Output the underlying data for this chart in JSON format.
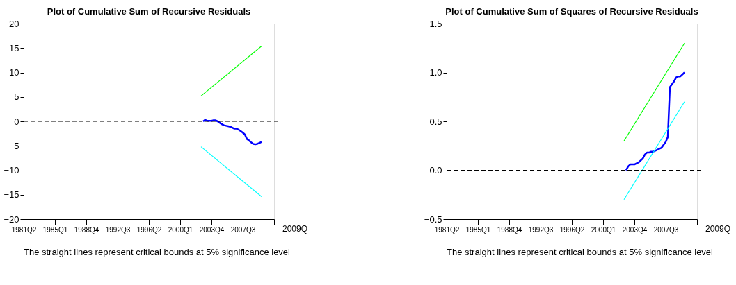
{
  "chart_data": [
    {
      "type": "line",
      "title": "Plot of Cumulative Sum of Recursive Residuals",
      "categories": [
        "1981Q2",
        null,
        null,
        null,
        null,
        null,
        null,
        null,
        null,
        null,
        null,
        null,
        null,
        null,
        null,
        "1985Q1",
        null,
        null,
        null,
        null,
        null,
        null,
        null,
        null,
        null,
        null,
        null,
        null,
        null,
        null,
        "1988Q4",
        null,
        null,
        null,
        null,
        null,
        null,
        null,
        null,
        null,
        null,
        null,
        null,
        null,
        null,
        "1992Q3",
        null,
        null,
        null,
        null,
        null,
        null,
        null,
        null,
        null,
        null,
        null,
        null,
        null,
        null,
        "1996Q2",
        null,
        null,
        null,
        null,
        null,
        null,
        null,
        null,
        null,
        null,
        null,
        null,
        null,
        null,
        "2000Q1",
        null,
        null,
        null,
        null,
        null,
        null,
        null,
        null,
        null,
        null,
        null,
        null,
        null,
        null,
        "2003Q4",
        null,
        null,
        null,
        null,
        null,
        null,
        null,
        null,
        null,
        null,
        null,
        null,
        null,
        null,
        "2007Q3",
        null,
        null,
        null,
        null,
        null,
        null,
        null,
        null,
        null,
        null,
        null,
        null,
        null,
        null,
        null
      ],
      "series": [
        {
          "color": "#0000ff",
          "values": [
            null,
            null,
            null,
            null,
            null,
            null,
            null,
            null,
            null,
            null,
            null,
            null,
            null,
            null,
            null,
            null,
            null,
            null,
            null,
            null,
            null,
            null,
            null,
            null,
            null,
            null,
            null,
            null,
            null,
            null,
            null,
            null,
            null,
            null,
            null,
            null,
            null,
            null,
            null,
            null,
            null,
            null,
            null,
            null,
            null,
            null,
            null,
            null,
            null,
            null,
            null,
            null,
            null,
            null,
            null,
            null,
            null,
            null,
            null,
            null,
            null,
            null,
            null,
            null,
            null,
            null,
            null,
            null,
            null,
            null,
            null,
            null,
            null,
            null,
            null,
            null,
            null,
            null,
            null,
            null,
            null,
            null,
            null,
            null,
            null,
            null,
            0.0,
            0.3,
            0.1,
            0.1,
            0.1,
            0.2,
            0.2,
            0.0,
            -0.3,
            -0.6,
            -0.8,
            -0.9,
            -1.0,
            -1.1,
            -1.3,
            -1.5,
            -1.5,
            -1.7,
            -2.0,
            -2.3,
            -2.7,
            -3.6,
            -3.9,
            -4.3,
            -4.6,
            -4.7,
            -4.6,
            -4.4,
            -4.2,
            null,
            null,
            null,
            null,
            null,
            null
          ]
        },
        {
          "color": "#00ff00",
          "values": [
            null,
            null,
            null,
            null,
            null,
            null,
            null,
            null,
            null,
            null,
            null,
            null,
            null,
            null,
            null,
            null,
            null,
            null,
            null,
            null,
            null,
            null,
            null,
            null,
            null,
            null,
            null,
            null,
            null,
            null,
            null,
            null,
            null,
            null,
            null,
            null,
            null,
            null,
            null,
            null,
            null,
            null,
            null,
            null,
            null,
            null,
            null,
            null,
            null,
            null,
            null,
            null,
            null,
            null,
            null,
            null,
            null,
            null,
            null,
            null,
            null,
            null,
            null,
            null,
            null,
            null,
            null,
            null,
            null,
            null,
            null,
            null,
            null,
            null,
            null,
            null,
            null,
            null,
            null,
            null,
            null,
            null,
            null,
            null,
            null,
            5.2,
            null,
            null,
            null,
            null,
            null,
            null,
            null,
            null,
            null,
            null,
            null,
            null,
            null,
            null,
            null,
            null,
            null,
            null,
            null,
            null,
            null,
            null,
            null,
            null,
            null,
            null,
            null,
            null,
            15.4,
            null,
            null,
            null,
            null,
            null,
            null
          ]
        },
        {
          "color": "#00ffff",
          "values": [
            null,
            null,
            null,
            null,
            null,
            null,
            null,
            null,
            null,
            null,
            null,
            null,
            null,
            null,
            null,
            null,
            null,
            null,
            null,
            null,
            null,
            null,
            null,
            null,
            null,
            null,
            null,
            null,
            null,
            null,
            null,
            null,
            null,
            null,
            null,
            null,
            null,
            null,
            null,
            null,
            null,
            null,
            null,
            null,
            null,
            null,
            null,
            null,
            null,
            null,
            null,
            null,
            null,
            null,
            null,
            null,
            null,
            null,
            null,
            null,
            null,
            null,
            null,
            null,
            null,
            null,
            null,
            null,
            null,
            null,
            null,
            null,
            null,
            null,
            null,
            null,
            null,
            null,
            null,
            null,
            null,
            null,
            null,
            null,
            null,
            -5.2,
            null,
            null,
            null,
            null,
            null,
            null,
            null,
            null,
            null,
            null,
            null,
            null,
            null,
            null,
            null,
            null,
            null,
            null,
            null,
            null,
            null,
            null,
            null,
            null,
            null,
            null,
            null,
            null,
            -15.4,
            null,
            null,
            null,
            null,
            null,
            null
          ]
        }
      ],
      "ylim": [
        -20,
        20
      ],
      "yticks": [
        -20,
        -15,
        -10,
        -5,
        0,
        5,
        10,
        15,
        20
      ],
      "ref_lines": [
        {
          "axis": "y",
          "value": 0,
          "color": "#000000",
          "line_style": "dashed"
        }
      ],
      "annotations": [
        "2009Q",
        "The straight lines represent critical bounds at 5% significance level"
      ],
      "grid": false
    },
    {
      "type": "line",
      "title": "Plot of Cumulative Sum of Squares of Recursive Residuals",
      "categories": [
        "1981Q2",
        null,
        null,
        null,
        null,
        null,
        null,
        null,
        null,
        null,
        null,
        null,
        null,
        null,
        null,
        "1985Q1",
        null,
        null,
        null,
        null,
        null,
        null,
        null,
        null,
        null,
        null,
        null,
        null,
        null,
        null,
        "1988Q4",
        null,
        null,
        null,
        null,
        null,
        null,
        null,
        null,
        null,
        null,
        null,
        null,
        null,
        null,
        "1992Q3",
        null,
        null,
        null,
        null,
        null,
        null,
        null,
        null,
        null,
        null,
        null,
        null,
        null,
        null,
        "1996Q2",
        null,
        null,
        null,
        null,
        null,
        null,
        null,
        null,
        null,
        null,
        null,
        null,
        null,
        null,
        "2000Q1",
        null,
        null,
        null,
        null,
        null,
        null,
        null,
        null,
        null,
        null,
        null,
        null,
        null,
        null,
        "2003Q4",
        null,
        null,
        null,
        null,
        null,
        null,
        null,
        null,
        null,
        null,
        null,
        null,
        null,
        null,
        "2007Q3",
        null,
        null,
        null,
        null,
        null,
        null,
        null,
        null,
        null,
        null,
        null,
        null,
        null,
        null,
        null
      ],
      "series": [
        {
          "color": "#0000ff",
          "values": [
            null,
            null,
            null,
            null,
            null,
            null,
            null,
            null,
            null,
            null,
            null,
            null,
            null,
            null,
            null,
            null,
            null,
            null,
            null,
            null,
            null,
            null,
            null,
            null,
            null,
            null,
            null,
            null,
            null,
            null,
            null,
            null,
            null,
            null,
            null,
            null,
            null,
            null,
            null,
            null,
            null,
            null,
            null,
            null,
            null,
            null,
            null,
            null,
            null,
            null,
            null,
            null,
            null,
            null,
            null,
            null,
            null,
            null,
            null,
            null,
            null,
            null,
            null,
            null,
            null,
            null,
            null,
            null,
            null,
            null,
            null,
            null,
            null,
            null,
            null,
            null,
            null,
            null,
            null,
            null,
            null,
            null,
            null,
            null,
            null,
            null,
            0.0,
            0.04,
            0.06,
            0.06,
            0.06,
            0.07,
            0.08,
            0.1,
            0.12,
            0.16,
            0.18,
            0.18,
            0.19,
            0.19,
            0.2,
            0.21,
            0.22,
            0.23,
            0.26,
            0.29,
            0.34,
            0.85,
            0.88,
            0.91,
            0.95,
            0.96,
            0.96,
            0.98,
            1.0,
            null,
            null,
            null,
            null,
            null,
            null
          ]
        },
        {
          "color": "#00ff00",
          "values": [
            null,
            null,
            null,
            null,
            null,
            null,
            null,
            null,
            null,
            null,
            null,
            null,
            null,
            null,
            null,
            null,
            null,
            null,
            null,
            null,
            null,
            null,
            null,
            null,
            null,
            null,
            null,
            null,
            null,
            null,
            null,
            null,
            null,
            null,
            null,
            null,
            null,
            null,
            null,
            null,
            null,
            null,
            null,
            null,
            null,
            null,
            null,
            null,
            null,
            null,
            null,
            null,
            null,
            null,
            null,
            null,
            null,
            null,
            null,
            null,
            null,
            null,
            null,
            null,
            null,
            null,
            null,
            null,
            null,
            null,
            null,
            null,
            null,
            null,
            null,
            null,
            null,
            null,
            null,
            null,
            null,
            null,
            null,
            null,
            null,
            0.3,
            null,
            null,
            null,
            null,
            null,
            null,
            null,
            null,
            null,
            null,
            null,
            null,
            null,
            null,
            null,
            null,
            null,
            null,
            null,
            null,
            null,
            null,
            null,
            null,
            null,
            null,
            null,
            null,
            1.3,
            null,
            null,
            null,
            null,
            null,
            null
          ]
        },
        {
          "color": "#00ffff",
          "values": [
            null,
            null,
            null,
            null,
            null,
            null,
            null,
            null,
            null,
            null,
            null,
            null,
            null,
            null,
            null,
            null,
            null,
            null,
            null,
            null,
            null,
            null,
            null,
            null,
            null,
            null,
            null,
            null,
            null,
            null,
            null,
            null,
            null,
            null,
            null,
            null,
            null,
            null,
            null,
            null,
            null,
            null,
            null,
            null,
            null,
            null,
            null,
            null,
            null,
            null,
            null,
            null,
            null,
            null,
            null,
            null,
            null,
            null,
            null,
            null,
            null,
            null,
            null,
            null,
            null,
            null,
            null,
            null,
            null,
            null,
            null,
            null,
            null,
            null,
            null,
            null,
            null,
            null,
            null,
            null,
            null,
            null,
            null,
            null,
            null,
            -0.3,
            null,
            null,
            null,
            null,
            null,
            null,
            null,
            null,
            null,
            null,
            null,
            null,
            null,
            null,
            null,
            null,
            null,
            null,
            null,
            null,
            null,
            null,
            null,
            null,
            null,
            null,
            null,
            null,
            0.7,
            null,
            null,
            null,
            null,
            null,
            null
          ]
        }
      ],
      "ylim": [
        -0.5,
        1.5
      ],
      "yticks": [
        -0.5,
        {
          "value": 0.0,
          "label": "0.0"
        },
        0.5,
        {
          "value": 1.0,
          "label": "1.0"
        },
        1.5
      ],
      "ref_lines": [
        {
          "axis": "y",
          "value": 0,
          "color": "#000000",
          "line_style": "dashed"
        }
      ],
      "annotations": [
        "2009Q",
        "The straight lines represent critical bounds at 5% significance level"
      ],
      "grid": false
    }
  ]
}
